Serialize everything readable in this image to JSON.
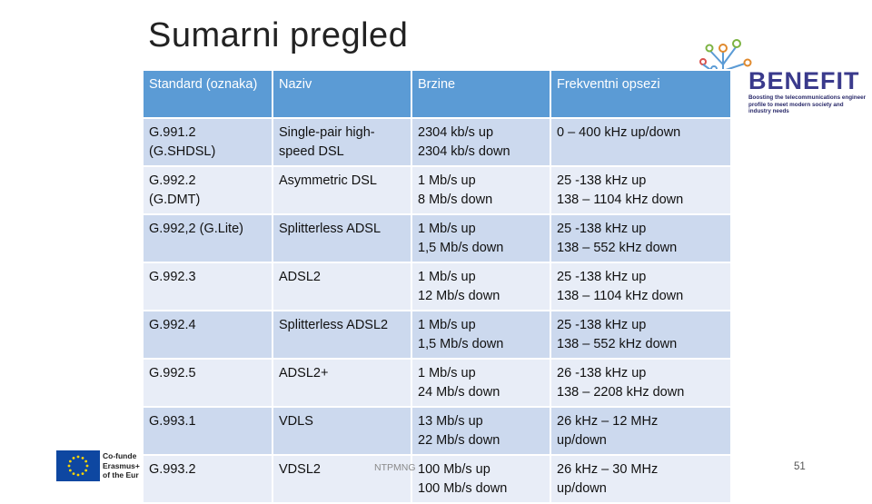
{
  "slide": {
    "title": "Sumarni pregled",
    "footer_text": "NTPMNG",
    "page_number": "51"
  },
  "logo": {
    "word": "BENEFIT",
    "tagline": "Boosting the telecommunications engineer profile to meet modern society and industry needs"
  },
  "eu_badge": {
    "lines": [
      "Co-funde",
      "Erasmus+",
      "of the Eur"
    ],
    "flag_color": "#0e47a1"
  },
  "table": {
    "headers": [
      "Standard (oznaka)",
      "Naziv",
      "Brzine",
      "Frekventni opsezi"
    ],
    "rows": [
      {
        "standard": [
          "G.991.2",
          "(G.SHDSL)"
        ],
        "naziv": [
          "Single-pair high-",
          "speed DSL"
        ],
        "brzine": [
          "2304 kb/s up",
          "2304 kb/s down"
        ],
        "frekvencije": [
          "0 – 400 kHz up/down"
        ]
      },
      {
        "standard": [
          "G.992.2",
          "(G.DMT)"
        ],
        "naziv": [
          "Asymmetric DSL"
        ],
        "brzine": [
          "1 Mb/s up",
          "8 Mb/s down"
        ],
        "frekvencije": [
          "25 -138 kHz up",
          "138 – 1104 kHz down"
        ]
      },
      {
        "standard": [
          "G.992,2 (G.Lite)"
        ],
        "naziv": [
          "Splitterless ADSL"
        ],
        "brzine": [
          "1 Mb/s up",
          "1,5 Mb/s down"
        ],
        "frekvencije": [
          "25 -138 kHz up",
          "138 – 552 kHz down"
        ]
      },
      {
        "standard": [
          "G.992.3"
        ],
        "naziv": [
          "ADSL2"
        ],
        "brzine": [
          "1 Mb/s up",
          "12 Mb/s down"
        ],
        "frekvencije": [
          "25 -138 kHz up",
          "138 – 1104 kHz down"
        ]
      },
      {
        "standard": [
          "G.992.4"
        ],
        "naziv": [
          "Splitterless ADSL2"
        ],
        "brzine": [
          "1 Mb/s up",
          "1,5 Mb/s down"
        ],
        "frekvencije": [
          "25 -138 kHz up",
          "138 – 552 kHz down"
        ]
      },
      {
        "standard": [
          "G.992.5"
        ],
        "naziv": [
          "ADSL2+"
        ],
        "brzine": [
          "1 Mb/s up",
          "24 Mb/s down"
        ],
        "frekvencije": [
          "26 -138 kHz up",
          "138 – 2208 kHz down"
        ]
      },
      {
        "standard": [
          "G.993.1"
        ],
        "naziv": [
          "VDLS"
        ],
        "brzine": [
          "13 Mb/s up",
          "22 Mb/s down"
        ],
        "frekvencije": [
          "26 kHz – 12 MHz",
          "up/down"
        ]
      },
      {
        "standard": [
          "G.993.2"
        ],
        "naziv": [
          "VDSL2"
        ],
        "brzine": [
          "100 Mb/s up",
          "100 Mb/s down"
        ],
        "frekvencije": [
          "26 kHz – 30 MHz",
          "up/down"
        ]
      }
    ]
  },
  "colors": {
    "header_bg": "#5b9bd5",
    "row_dark": "#ccd9ee",
    "row_light": "#e8edf7",
    "logo_blue": "#3a3a8c"
  }
}
